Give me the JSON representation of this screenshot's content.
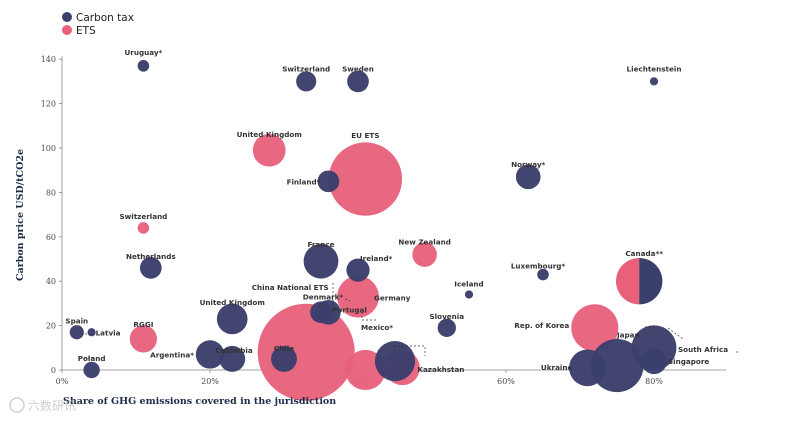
{
  "colors": {
    "carbon_tax": "#3b3f6b",
    "ets": "#e8607a",
    "axis": "#888888",
    "label_text": "#333333"
  },
  "watermark": "六数研讯",
  "chart_data": {
    "type": "scatter",
    "title": "",
    "xlabel": "Share of GHG emissions covered in the jurisdiction",
    "ylabel": "Carbon price USD/tCO2e",
    "xlim": [
      0,
      0.9
    ],
    "ylim": [
      0,
      140
    ],
    "x_ticks": [
      0,
      0.2,
      0.4,
      0.6,
      0.8
    ],
    "x_tick_labels": [
      "0%",
      "20%",
      "40%",
      "60%",
      "80%"
    ],
    "y_ticks": [
      0,
      20,
      40,
      60,
      80,
      100,
      120,
      140
    ],
    "y_tick_labels": [
      "0",
      "20",
      "40",
      "60",
      "80",
      "100",
      "120",
      "140"
    ],
    "grid": false,
    "legend": {
      "position": "top-left",
      "entries": [
        {
          "name": "Carbon tax",
          "color_key": "carbon_tax"
        },
        {
          "name": "ETS",
          "color_key": "ets"
        }
      ]
    },
    "series": [
      {
        "name": "Carbon tax",
        "points": [
          {
            "label": "Uruguay*",
            "x": 0.11,
            "y": 137,
            "size": 2
          },
          {
            "label": "Switzerland",
            "x": 0.33,
            "y": 130,
            "size": 6
          },
          {
            "label": "Sweden",
            "x": 0.4,
            "y": 130,
            "size": 7
          },
          {
            "label": "Liechtenstein",
            "x": 0.8,
            "y": 130,
            "size": 1
          },
          {
            "label": "Finland*",
            "x": 0.36,
            "y": 85,
            "size": 7
          },
          {
            "label": "Norway*",
            "x": 0.63,
            "y": 87,
            "size": 9
          },
          {
            "label": "France",
            "x": 0.35,
            "y": 49,
            "size": 18
          },
          {
            "label": "Ireland*",
            "x": 0.4,
            "y": 45,
            "size": 8
          },
          {
            "label": "Netherlands",
            "x": 0.12,
            "y": 46,
            "size": 7
          },
          {
            "label": "Luxembourg*",
            "x": 0.65,
            "y": 43,
            "size": 2
          },
          {
            "label": "Iceland",
            "x": 0.55,
            "y": 34,
            "size": 1
          },
          {
            "label": "Denmark*",
            "x": 0.35,
            "y": 26,
            "size": 7
          },
          {
            "label": "Slovenia",
            "x": 0.52,
            "y": 19,
            "size": 5
          },
          {
            "label": "United Kingdom",
            "x": 0.23,
            "y": 23,
            "size": 14
          },
          {
            "label": "Spain",
            "x": 0.02,
            "y": 17,
            "size": 3
          },
          {
            "label": "Latvia",
            "x": 0.04,
            "y": 17,
            "size": 1
          },
          {
            "label": "Argentina*",
            "x": 0.2,
            "y": 7,
            "size": 12
          },
          {
            "label": "Colombia",
            "x": 0.23,
            "y": 5,
            "size": 10
          },
          {
            "label": "Chile",
            "x": 0.3,
            "y": 5,
            "size": 10
          },
          {
            "label": "Poland",
            "x": 0.04,
            "y": 0,
            "size": 4
          },
          {
            "label": "Mexico*",
            "x": 0.45,
            "y": 4,
            "size": 24
          },
          {
            "label": "Portugal",
            "x": 0.36,
            "y": 26,
            "size": 9
          },
          {
            "label": "Ukraine",
            "x": 0.71,
            "y": 1,
            "size": 20
          },
          {
            "label": "South Africa",
            "x": 0.8,
            "y": 10,
            "size": 30
          },
          {
            "label": "Singapore",
            "x": 0.8,
            "y": 4,
            "size": 10
          },
          {
            "label": "Japan",
            "x": 0.75,
            "y": 2,
            "size": 42
          },
          {
            "label": "Canada**",
            "x": 0.78,
            "y": 40,
            "size": 32,
            "split": true
          }
        ]
      },
      {
        "name": "ETS",
        "points": [
          {
            "label": "United Kingdom",
            "x": 0.28,
            "y": 99,
            "size": 16
          },
          {
            "label": "EU ETS",
            "x": 0.41,
            "y": 86,
            "size": 80
          },
          {
            "label": "Switzerland",
            "x": 0.11,
            "y": 64,
            "size": 2
          },
          {
            "label": "New Zealand",
            "x": 0.49,
            "y": 52,
            "size": 9
          },
          {
            "label": "Germany",
            "x": 0.4,
            "y": 33,
            "size": 26
          },
          {
            "label": "China National ETS",
            "x": 0.33,
            "y": 8,
            "size": 140
          },
          {
            "label": "RGGI",
            "x": 0.11,
            "y": 14,
            "size": 11
          },
          {
            "label": "Rep. of Korea",
            "x": 0.72,
            "y": 19,
            "size": 33
          },
          {
            "label": "Kazakhstan",
            "x": 0.46,
            "y": 1,
            "size": 18
          },
          {
            "label": "Mexico*",
            "x": 0.41,
            "y": 0,
            "size": 24
          },
          {
            "label": "Canada**",
            "x": 0.78,
            "y": 40,
            "size": 32,
            "split": true
          }
        ]
      }
    ]
  }
}
